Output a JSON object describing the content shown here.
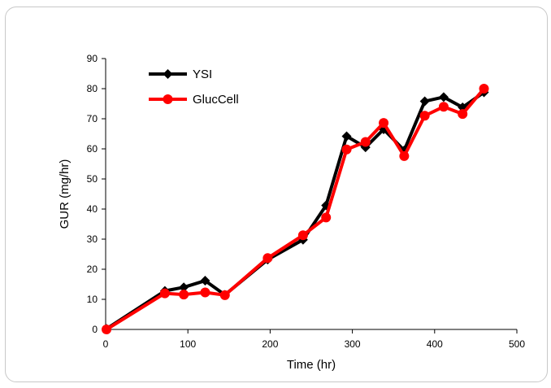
{
  "chart_data": {
    "type": "line",
    "xlabel": "Time (hr)",
    "ylabel": "GUR (mg/hr)",
    "xlim": [
      0,
      500
    ],
    "ylim": [
      0,
      90
    ],
    "x_ticks": [
      0,
      100,
      200,
      300,
      400,
      500
    ],
    "y_ticks": [
      0,
      10,
      20,
      30,
      40,
      50,
      60,
      70,
      80,
      90
    ],
    "grid": false,
    "legend_position": "top-left",
    "series": [
      {
        "name": "YSI",
        "color": "#000000",
        "marker": "diamond",
        "points": [
          {
            "x": 1,
            "y": 0.2
          },
          {
            "x": 72,
            "y": 12.8
          },
          {
            "x": 95,
            "y": 14.0
          },
          {
            "x": 121,
            "y": 16.2
          },
          {
            "x": 145,
            "y": 11.5
          },
          {
            "x": 197,
            "y": 23.2
          },
          {
            "x": 240,
            "y": 29.8
          },
          {
            "x": 268,
            "y": 41.2
          },
          {
            "x": 293,
            "y": 64.2
          },
          {
            "x": 316,
            "y": 60.5
          },
          {
            "x": 338,
            "y": 66.5
          },
          {
            "x": 363,
            "y": 59.5
          },
          {
            "x": 388,
            "y": 75.8
          },
          {
            "x": 411,
            "y": 77.2
          },
          {
            "x": 434,
            "y": 73.8
          },
          {
            "x": 460,
            "y": 78.8
          }
        ]
      },
      {
        "name": "GlucCell",
        "color": "#ff0000",
        "marker": "circle",
        "points": [
          {
            "x": 1,
            "y": 0.0
          },
          {
            "x": 72,
            "y": 12.0
          },
          {
            "x": 95,
            "y": 11.6
          },
          {
            "x": 121,
            "y": 12.3
          },
          {
            "x": 145,
            "y": 11.4
          },
          {
            "x": 197,
            "y": 23.7
          },
          {
            "x": 240,
            "y": 31.3
          },
          {
            "x": 268,
            "y": 37.2
          },
          {
            "x": 293,
            "y": 59.8
          },
          {
            "x": 316,
            "y": 62.3
          },
          {
            "x": 338,
            "y": 68.6
          },
          {
            "x": 363,
            "y": 57.6
          },
          {
            "x": 388,
            "y": 71.0
          },
          {
            "x": 411,
            "y": 74.0
          },
          {
            "x": 434,
            "y": 71.6
          },
          {
            "x": 460,
            "y": 80.0
          }
        ]
      }
    ]
  }
}
